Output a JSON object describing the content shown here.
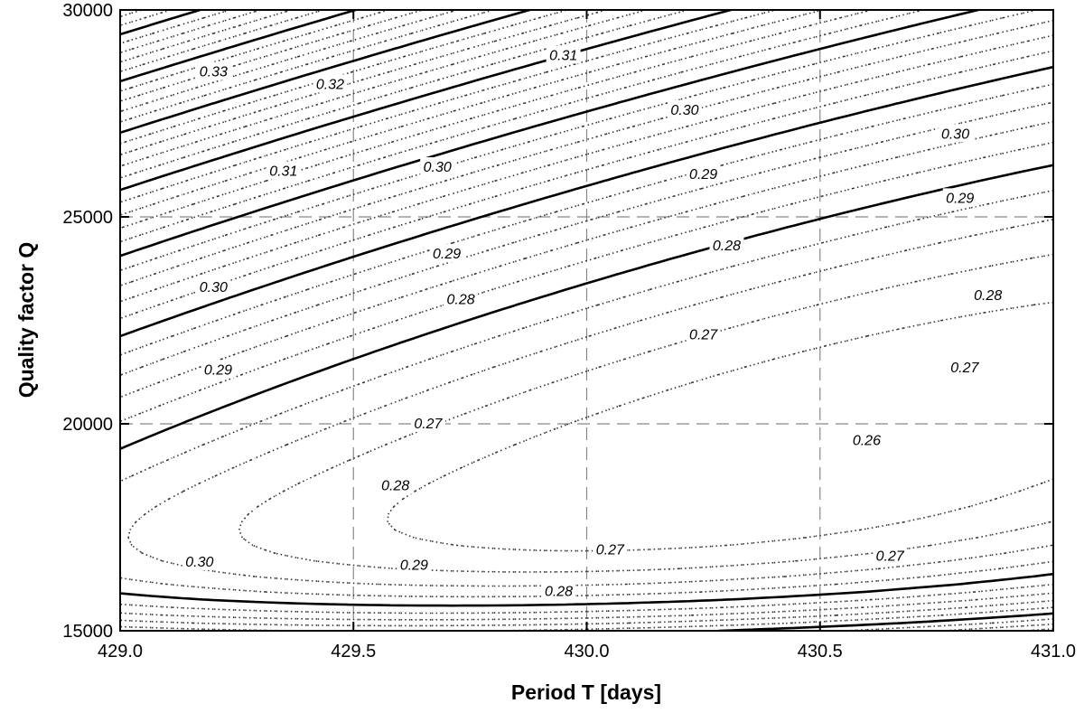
{
  "chart_data": {
    "type": "contour",
    "xlabel": "Period T [days]",
    "ylabel": "Quality factor Q",
    "xlim": [
      429.0,
      431.0
    ],
    "ylim": [
      15000,
      30000
    ],
    "x_ticks": [
      "429.0",
      "429.5",
      "430.0",
      "430.5",
      "431.0"
    ],
    "y_ticks": [
      "15000",
      "20000",
      "25000",
      "30000"
    ],
    "grid": "dashed at major ticks",
    "minimum": {
      "x": 430.45,
      "y": 19200,
      "value": 0.26
    },
    "major_levels": [
      0.26,
      0.27,
      0.28,
      0.29,
      0.3,
      0.31,
      0.32,
      0.33
    ],
    "minor_level_step": 0.002,
    "contour_labels": [
      {
        "text": "0.33",
        "x": 429.2,
        "y": 28500
      },
      {
        "text": "0.32",
        "x": 429.45,
        "y": 28200
      },
      {
        "text": "0.31",
        "x": 429.35,
        "y": 26100
      },
      {
        "text": "0.31",
        "x": 429.95,
        "y": 28900
      },
      {
        "text": "0.30",
        "x": 429.68,
        "y": 26200
      },
      {
        "text": "0.30",
        "x": 430.21,
        "y": 27580
      },
      {
        "text": "0.30",
        "x": 430.79,
        "y": 27000
      },
      {
        "text": "0.30",
        "x": 429.2,
        "y": 23300
      },
      {
        "text": "0.30",
        "x": 429.17,
        "y": 16660
      },
      {
        "text": "0.29",
        "x": 429.7,
        "y": 24100
      },
      {
        "text": "0.29",
        "x": 430.25,
        "y": 26030
      },
      {
        "text": "0.29",
        "x": 430.8,
        "y": 25450
      },
      {
        "text": "0.29",
        "x": 429.21,
        "y": 21300
      },
      {
        "text": "0.29",
        "x": 429.63,
        "y": 16580
      },
      {
        "text": "0.28",
        "x": 429.73,
        "y": 23000
      },
      {
        "text": "0.28",
        "x": 430.3,
        "y": 24300
      },
      {
        "text": "0.28",
        "x": 430.86,
        "y": 23100
      },
      {
        "text": "0.28",
        "x": 429.59,
        "y": 18500
      },
      {
        "text": "0.28",
        "x": 429.94,
        "y": 15950
      },
      {
        "text": "0.27",
        "x": 429.66,
        "y": 20000
      },
      {
        "text": "0.27",
        "x": 430.25,
        "y": 22150
      },
      {
        "text": "0.27",
        "x": 430.81,
        "y": 21350
      },
      {
        "text": "0.27",
        "x": 430.05,
        "y": 16950
      },
      {
        "text": "0.27",
        "x": 430.65,
        "y": 16800
      },
      {
        "text": "0.26",
        "x": 430.6,
        "y": 19600
      }
    ]
  }
}
